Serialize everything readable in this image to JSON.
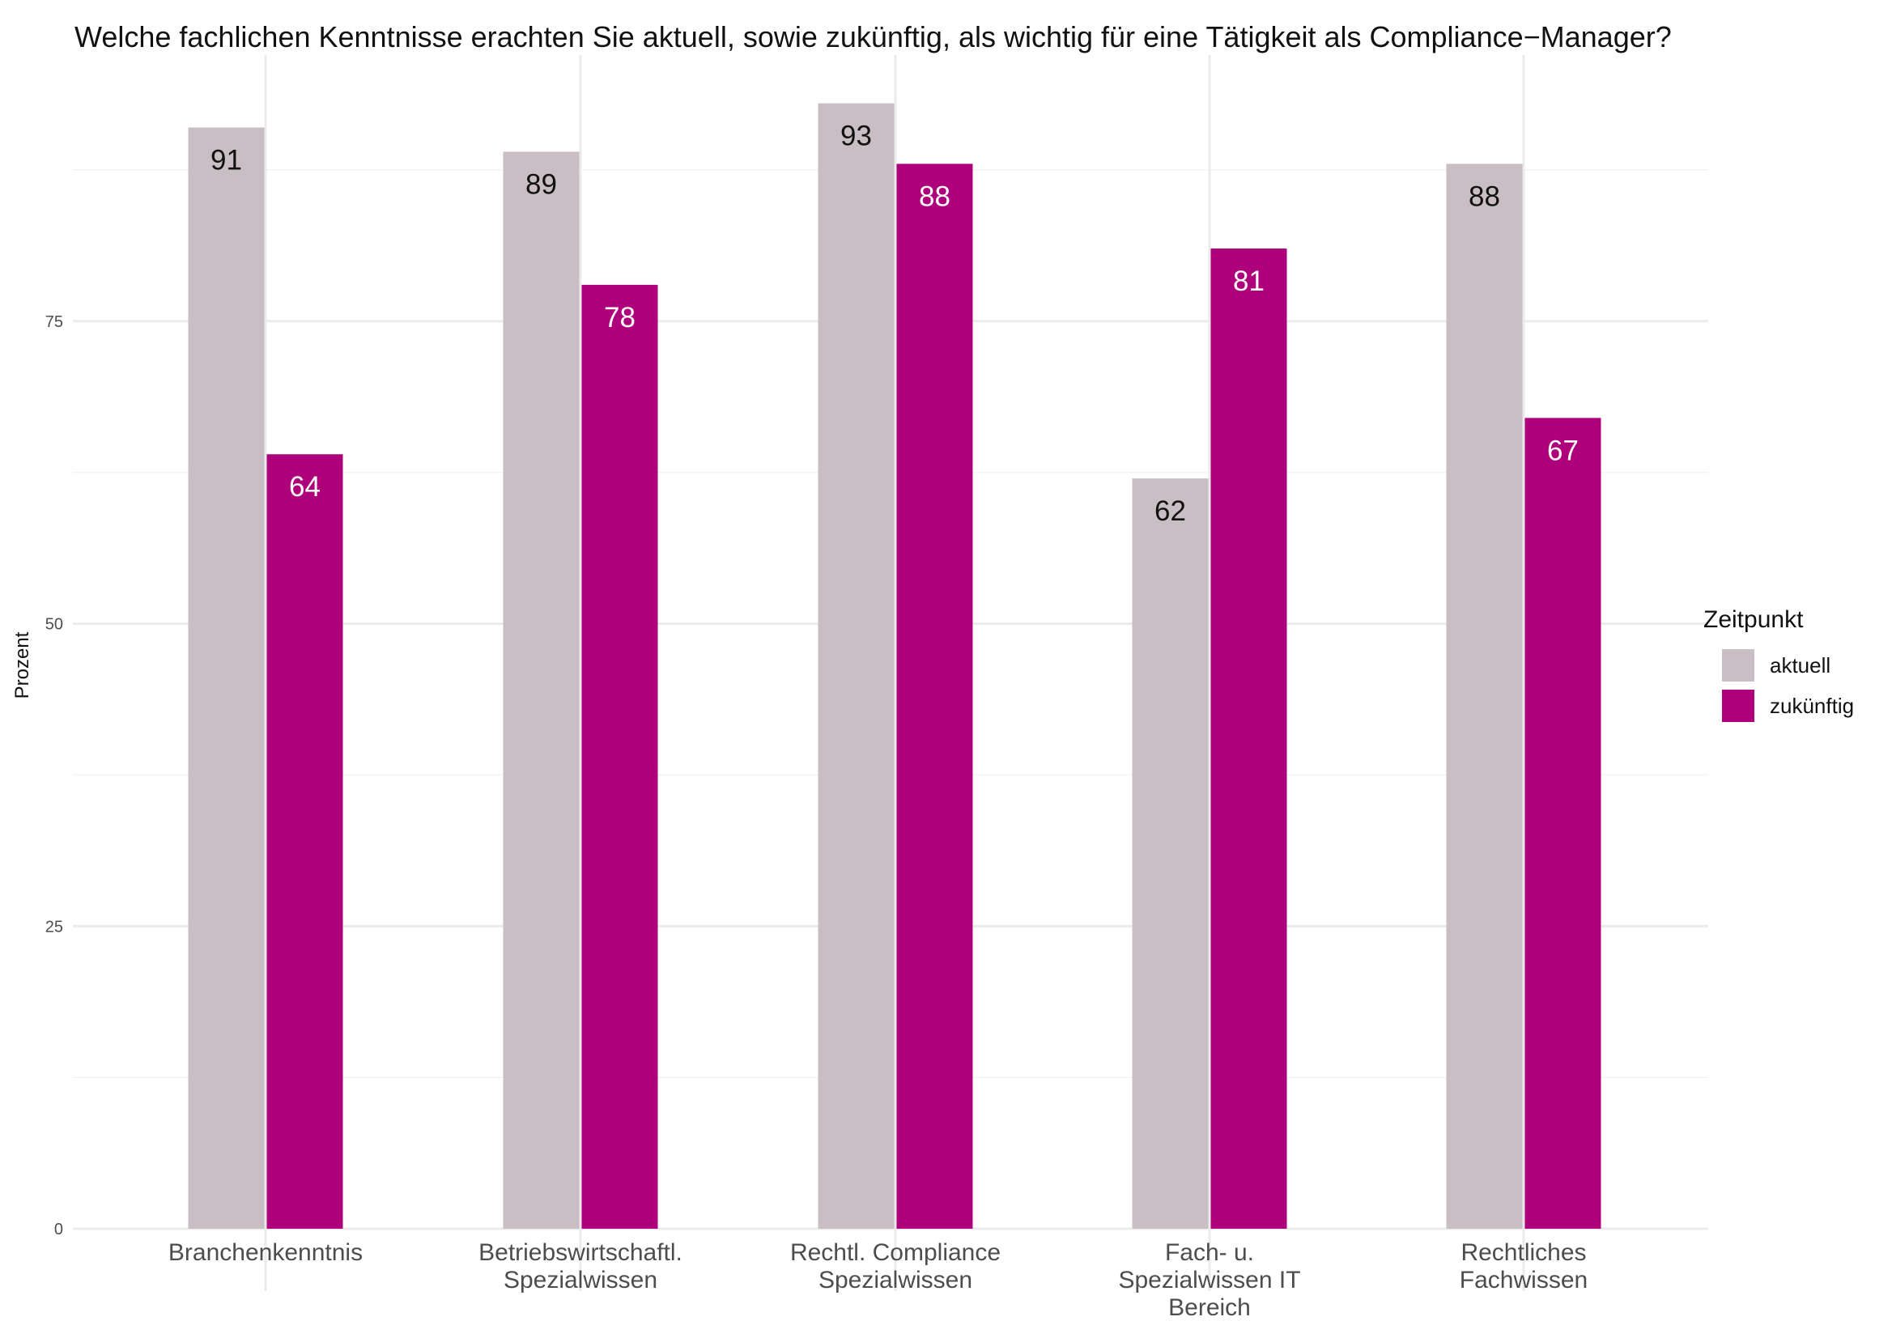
{
  "chart_data": {
    "type": "bar",
    "title": "Welche fachlichen Kenntnisse erachten Sie aktuell, sowie zukünftig, als wichtig für eine Tätigkeit als Compliance−Manager?",
    "xlabel": "",
    "ylabel": "Prozent",
    "ylim": [
      0,
      93
    ],
    "yticks": [
      0,
      25,
      50,
      75
    ],
    "grid": true,
    "categories": [
      [
        "Branchenkenntnis"
      ],
      [
        "Betriebswirtschaftl.",
        "Spezialwissen"
      ],
      [
        "Rechtl. Compliance",
        "Spezialwissen"
      ],
      [
        "Fach- u.",
        "Spezialwissen IT",
        "Bereich"
      ],
      [
        "Rechtliches",
        "Fachwissen"
      ]
    ],
    "series": [
      {
        "name": "aktuell",
        "color": "#c9bec4",
        "label_color": "#111111",
        "values": [
          91,
          89,
          93,
          62,
          88
        ]
      },
      {
        "name": "zukünftig",
        "color": "#ae007a",
        "label_color": "#ffffff",
        "values": [
          64,
          78,
          88,
          81,
          67
        ]
      }
    ],
    "legend": {
      "title": "Zeitpunkt",
      "position": "right"
    }
  }
}
